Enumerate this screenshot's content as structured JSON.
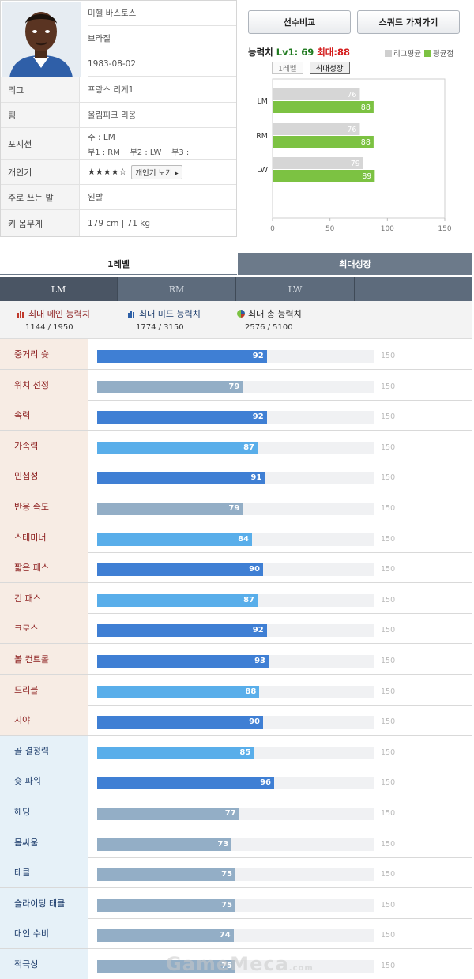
{
  "profile": {
    "name": "미헬 바스토스",
    "nationality": "브라질",
    "birth": "1983-08-02",
    "rows": [
      {
        "label": "리그",
        "value": "프랑스 리게1"
      },
      {
        "label": "팀",
        "value": "올림피크 리옹"
      },
      {
        "label": "개인기",
        "value": ""
      },
      {
        "label": "주로 쓰는 발",
        "value": "왼발"
      },
      {
        "label": "키 몸무게",
        "value": "179 cm | 71 kg"
      }
    ],
    "position": {
      "label": "포지션",
      "main": "주 : LM",
      "sub": "부1 : RM    부2 : LW    부3 :"
    },
    "skill_stars": "★★★★☆",
    "skill_button": "개인기 보기 ▸"
  },
  "buttons": {
    "compare": "선수비교",
    "squad": "스쿼드 가져가기"
  },
  "ability": {
    "label": "능력치",
    "lv1": "Lv1: 69",
    "max": "최대:88"
  },
  "legend": {
    "league": "리그평균",
    "avg": "평균점",
    "league_color": "#cfcfcf",
    "avg_color": "#7cc242"
  },
  "mini_tabs": [
    "1레벨",
    "최대성장"
  ],
  "mini_chart": {
    "type": "bar",
    "categories": [
      "LM",
      "RM",
      "LW"
    ],
    "series": [
      {
        "name": "리그평균",
        "values": [
          76,
          76,
          79
        ]
      },
      {
        "name": "평균점",
        "values": [
          88,
          88,
          89
        ]
      }
    ],
    "xlim": [
      0,
      150
    ],
    "ticks": [
      "0",
      "50",
      "100",
      "150"
    ]
  },
  "level_tabs": [
    "1레벨",
    "최대성장"
  ],
  "position_tabs": [
    "LM",
    "RM",
    "LW",
    ""
  ],
  "summary": [
    {
      "title": "최대 메인 능력치",
      "value": "1144 / 1950",
      "color": "#8a1a1a",
      "icon": "bar-chart-red-icon"
    },
    {
      "title": "최대 미드 능력치",
      "value": "1774 / 3150",
      "color": "#1a3a6a",
      "icon": "bar-chart-blue-icon"
    },
    {
      "title": "최대 총 능력치",
      "value": "2576 / 5100",
      "color": "#222222",
      "icon": "pie-chart-icon"
    }
  ],
  "stat_max": "150",
  "stats": [
    {
      "label": "중거리 슛",
      "value": 92,
      "group": "a",
      "tone": 1
    },
    {
      "label": "위치 선정",
      "value": 79,
      "group": "a",
      "tone": 3
    },
    {
      "label": "속력",
      "value": 92,
      "group": "a",
      "tone": 1
    },
    {
      "label": "가속력",
      "value": 87,
      "group": "a",
      "tone": 2
    },
    {
      "label": "민첩성",
      "value": 91,
      "group": "a",
      "tone": 1
    },
    {
      "label": "반응 속도",
      "value": 79,
      "group": "a",
      "tone": 3
    },
    {
      "label": "스태미너",
      "value": 84,
      "group": "a",
      "tone": 2
    },
    {
      "label": "짧은 패스",
      "value": 90,
      "group": "a",
      "tone": 1
    },
    {
      "label": "긴 패스",
      "value": 87,
      "group": "a",
      "tone": 2
    },
    {
      "label": "크로스",
      "value": 92,
      "group": "a",
      "tone": 1
    },
    {
      "label": "볼 컨트롤",
      "value": 93,
      "group": "a",
      "tone": 1
    },
    {
      "label": "드리블",
      "value": 88,
      "group": "a",
      "tone": 2
    },
    {
      "label": "시야",
      "value": 90,
      "group": "a",
      "tone": 1
    },
    {
      "label": "골 결정력",
      "value": 85,
      "group": "b",
      "tone": 2
    },
    {
      "label": "슛 파워",
      "value": 96,
      "group": "b",
      "tone": 1
    },
    {
      "label": "헤딩",
      "value": 77,
      "group": "b",
      "tone": 3
    },
    {
      "label": "몸싸움",
      "value": 73,
      "group": "b",
      "tone": 3
    },
    {
      "label": "태클",
      "value": 75,
      "group": "b",
      "tone": 3
    },
    {
      "label": "슬라이딩 태클",
      "value": 75,
      "group": "b",
      "tone": 3
    },
    {
      "label": "대인 수비",
      "value": 74,
      "group": "b",
      "tone": 3
    },
    {
      "label": "적극성",
      "value": 75,
      "group": "b",
      "tone": 3
    }
  ],
  "watermark": {
    "main": "GameMeca",
    "suffix": ".com"
  }
}
